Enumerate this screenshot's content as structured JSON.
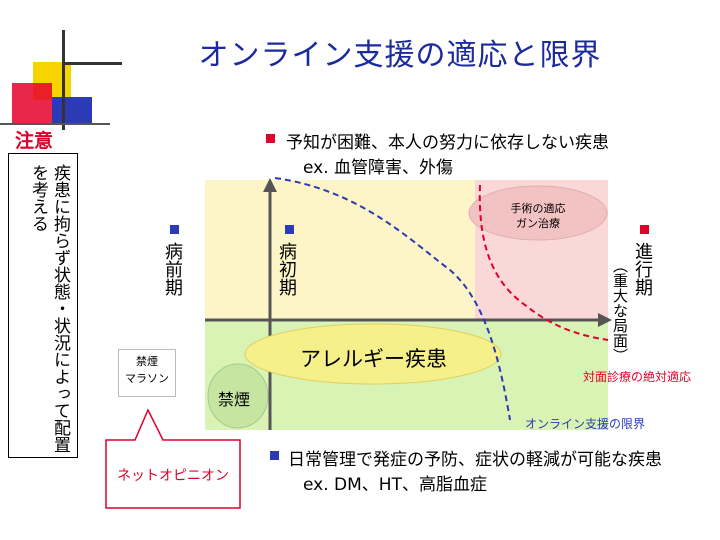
{
  "title": "オンライン支援の適応と限界",
  "caution": {
    "heading": "注意",
    "note": "疾患に拘らず状態・状況によって配置を考える"
  },
  "top_bullet": {
    "line1": "予知が困難、本人の努力に依存しない疾患",
    "line2": "ex. 血管障害、外傷"
  },
  "bottom_bullet": {
    "line1": "日常管理で発症の予防、症状の軽減が可能な疾患",
    "line2": "ex. DM、HT、高脂血症"
  },
  "stages": [
    {
      "label": "病前期",
      "sub": ""
    },
    {
      "label": "病初期",
      "sub": ""
    },
    {
      "label": "進行期",
      "sub": "（重大な局面）"
    }
  ],
  "diagram": {
    "surgery_line1": "手術の適応",
    "surgery_line2": "ガン治療",
    "allergy": "アレルギー疾患",
    "smoking": "禁煙",
    "face_to_face_limit": "対面診療の絶対適応",
    "online_limit": "オンライン支援の限界"
  },
  "callout": {
    "box_line1": "禁煙",
    "box_line2": "マラソン",
    "net_opinion": "ネットオピニオン"
  },
  "colors": {
    "title": "#1b2a9c",
    "caution": "#e0002a",
    "bullet_red": "#e0002a",
    "bullet_blue": "#2a3bb5",
    "zone_yellow": "#fdf5c8",
    "zone_pink": "#fbd8d8",
    "zone_green": "#d9f3b5"
  }
}
